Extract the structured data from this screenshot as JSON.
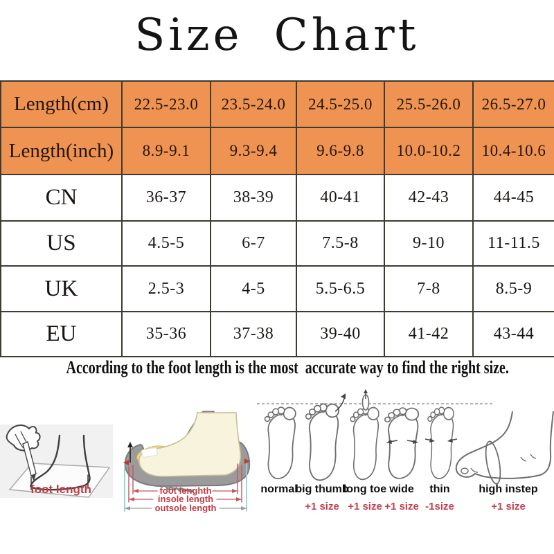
{
  "title": "Size Chart",
  "note": "According to the foot length is the most  accurate way to find the right size.",
  "size_table": {
    "rows": [
      {
        "label": "Length(cm)",
        "values": [
          "22.5-23.0",
          "23.5-24.0",
          "24.5-25.0",
          "25.5-26.0",
          "26.5-27.0"
        ],
        "highlight": true
      },
      {
        "label": "Length(inch)",
        "values": [
          "8.9-9.1",
          "9.3-9.4",
          "9.6-9.8",
          "10.0-10.2",
          "10.4-10.6"
        ],
        "highlight": true
      },
      {
        "label": "CN",
        "values": [
          "36-37",
          "38-39",
          "40-41",
          "42-43",
          "44-45"
        ],
        "highlight": false
      },
      {
        "label": "US",
        "values": [
          "4.5-5",
          "6-7",
          "7.5-8",
          "9-10",
          "11-11.5"
        ],
        "highlight": false
      },
      {
        "label": "UK",
        "values": [
          "2.5-3",
          "4-5",
          "5.5-6.5",
          "7-8",
          "8.5-9"
        ],
        "highlight": false
      },
      {
        "label": "EU",
        "values": [
          "35-36",
          "37-38",
          "39-40",
          "41-42",
          "43-44"
        ],
        "highlight": false
      }
    ]
  },
  "measure_guide": {
    "foot_length_label": "foot length",
    "shoe_labels": [
      "foot lenghth",
      "insole length",
      "outsole length"
    ]
  },
  "foot_types": [
    {
      "name": "normal",
      "size_adjust": ""
    },
    {
      "name": "big thumb",
      "size_adjust": "+1 size"
    },
    {
      "name": "long toe",
      "size_adjust": "+1 size"
    },
    {
      "name": "wide",
      "size_adjust": "+1 size"
    },
    {
      "name": "thin",
      "size_adjust": "-1size"
    },
    {
      "name": "high instep",
      "size_adjust": "+1 size"
    }
  ],
  "colors": {
    "table_header_bg": "#ee9351",
    "table_border": "#3c3c33",
    "accent_red": "#c4414f",
    "line_art": "#6e6e6e",
    "shoe_gray": "#9b9b9b",
    "insole_yellow": "#eed77f",
    "foot_cream": "#f7f3dd",
    "measure_cyan": "#8fd4dc"
  }
}
